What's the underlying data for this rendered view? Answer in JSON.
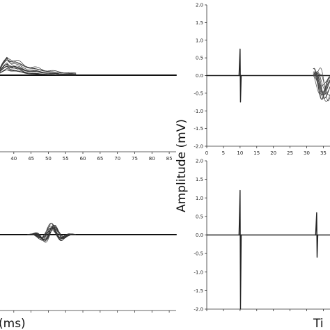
{
  "figure": {
    "ylabel_big": "Amplitude (mV)",
    "xlabel_left_fragment": "(ms)",
    "xlabel_right_fragment": "Ti"
  },
  "chart_data": [
    {
      "id": "top_left",
      "type": "line",
      "xlim": [
        35,
        87
      ],
      "xticks": [
        40,
        45,
        50,
        55,
        60,
        65,
        70,
        75,
        80,
        85
      ],
      "baseline": 0,
      "xlabel": "",
      "ylabel": "",
      "features": [
        {
          "kind": "overlaid-responses",
          "count": 14,
          "start": 35,
          "peak_x": 38,
          "peak_y": 0.75,
          "end": 58,
          "min_peak": 0.15
        }
      ]
    },
    {
      "id": "bottom_left",
      "type": "line",
      "xlim": [
        35,
        87
      ],
      "xticks": [],
      "baseline": 0,
      "xlabel": "",
      "ylabel": "",
      "features": [
        {
          "kind": "overlaid-oscillation",
          "count": 14,
          "start": 44,
          "end": 58,
          "peak_x": 51,
          "peak_y": 0.35
        }
      ]
    },
    {
      "id": "top_right",
      "type": "line",
      "xlim": [
        0,
        37
      ],
      "ylim": [
        -2.0,
        2.0
      ],
      "xticks": [
        0,
        5,
        10,
        15,
        20,
        25,
        30,
        35
      ],
      "xtick_labels": [
        "0",
        "5",
        "10",
        "15",
        "20",
        "25",
        "30",
        "35"
      ],
      "yticks": [
        2.0,
        1.5,
        1.0,
        0.5,
        0.0,
        -0.5,
        -1.0,
        -1.5,
        -2.0
      ],
      "ytick_labels": [
        "2.0",
        "1.5",
        "1.0",
        "0.5",
        "0.0",
        "-0.5",
        "-1.0",
        "-1.5",
        "-2.0"
      ],
      "xlabel": "",
      "ylabel": "",
      "features": [
        {
          "kind": "stim-artifact",
          "x": 10,
          "up": 0.75,
          "down": -0.75
        },
        {
          "kind": "overlaid-responses",
          "count": 14,
          "start": 32,
          "peak_x": 35.5,
          "peak_y": -0.55,
          "end": 37
        }
      ]
    },
    {
      "id": "bottom_right",
      "type": "line",
      "xlim": [
        0,
        37
      ],
      "ylim": [
        -2.0,
        2.0
      ],
      "xticks": [
        0,
        5,
        10,
        15,
        20,
        25,
        30,
        35
      ],
      "xtick_labels": [],
      "yticks": [
        2.0,
        1.5,
        1.0,
        0.5,
        0.0,
        -0.5,
        -1.0,
        -1.5,
        -2.0
      ],
      "ytick_labels": [
        "2.0",
        "1.5",
        "1.0",
        "0.5",
        "0.0",
        "-0.5",
        "-1.0",
        "-1.5",
        "-2.0"
      ],
      "xlabel": "",
      "ylabel": "",
      "features": [
        {
          "kind": "stim-artifact",
          "x": 10,
          "up": 1.2,
          "down": -2.0
        },
        {
          "kind": "stim-artifact",
          "x": 33,
          "up": 0.6,
          "down": -0.6
        }
      ]
    }
  ]
}
